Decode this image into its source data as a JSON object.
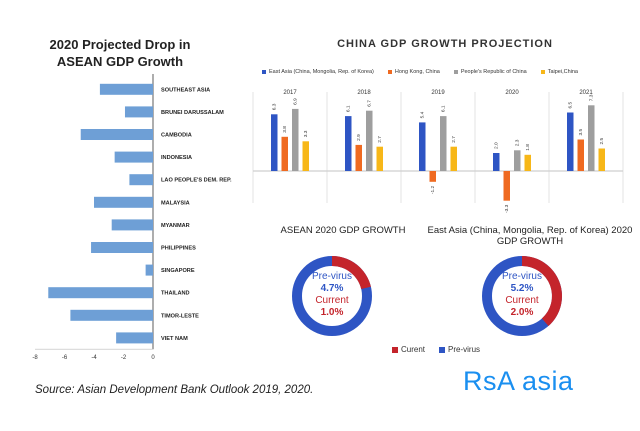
{
  "chart_data": [
    {
      "type": "bar",
      "orientation": "horizontal",
      "title": "2020 Projected Drop in ASEAN GDP Growth",
      "categories": [
        "SOUTHEAST ASIA",
        "BRUNEI DARUSSALAM",
        "CAMBODIA",
        "INDONESIA",
        "LAO PEOPLE'S DEM. REP.",
        "MALAYSIA",
        "MYANMAR",
        "PHILIPPINES",
        "SINGAPORE",
        "THAILAND",
        "TIMOR-LESTE",
        "VIET NAM"
      ],
      "values": [
        -3.6,
        -1.9,
        -4.9,
        -2.6,
        -1.6,
        -4.0,
        -2.8,
        -4.2,
        -0.5,
        -7.1,
        -5.6,
        -2.5
      ],
      "xlim": [
        -8,
        0
      ],
      "xticks": [
        "-8",
        "-6",
        "-4",
        "-2",
        "0"
      ]
    },
    {
      "type": "bar",
      "title": "CHINA GDP GROWTH PROJECTION",
      "categories": [
        "2017",
        "2018",
        "2019",
        "2020",
        "2021"
      ],
      "series": [
        {
          "name": "East Asia (China, Mongolia, Rep. of Korea)",
          "color": "#2e55c4",
          "values": [
            6.3,
            6.1,
            5.4,
            2.0,
            6.5
          ],
          "labels": [
            "6.3",
            "6.1",
            "5.4",
            "2.0",
            "6.5"
          ]
        },
        {
          "name": "Hong Kong, China",
          "color": "#ef6a21",
          "values": [
            3.8,
            2.9,
            -1.2,
            -3.3,
            3.5
          ],
          "labels": [
            "3.8",
            "2.9",
            "-1.2",
            "-3.3",
            "3.5"
          ]
        },
        {
          "name": "People's Republic of China",
          "color": "#9e9e9e",
          "values": [
            6.9,
            6.7,
            6.1,
            2.3,
            7.3
          ],
          "labels": [
            "6.9",
            "6.7",
            "6.1",
            "2.3",
            "7.3"
          ]
        },
        {
          "name": "Taipei,China",
          "color": "#f7b718",
          "values": [
            3.3,
            2.7,
            2.7,
            1.8,
            2.5
          ],
          "labels": [
            "3.3",
            "2.7",
            "2.7",
            "1.8",
            "2.5"
          ]
        }
      ]
    },
    {
      "type": "pie",
      "title": "ASEAN 2020 GDP GROWTH",
      "labels": [
        "Curent",
        "Pre-virus"
      ],
      "values": [
        1.0,
        4.7
      ],
      "center_text": {
        "pre_label": "Pre-virus",
        "pre_value": "4.7%",
        "cur_label": "Current",
        "cur_value": "1.0%"
      }
    },
    {
      "type": "pie",
      "title": "East Asia (China, Mongolia, Rep. of Korea) 2020 GDP GROWTH",
      "labels": [
        "Curent",
        "Pre-virus"
      ],
      "values": [
        2.0,
        5.2
      ],
      "center_text": {
        "pre_label": "Pre-virus",
        "pre_value": "5.2%",
        "cur_label": "Current",
        "cur_value": "2.0%"
      }
    }
  ],
  "colors": {
    "hbar": "#6e9fd6",
    "current": "#c4242b",
    "previrus": "#2e55c4",
    "brand": "#1a8ff0"
  },
  "legend": {
    "current": "Curent",
    "previrus": "Pre-virus"
  },
  "source": "Source: Asian Development Bank Outlook 2019, 2020.",
  "brand": "RsA asia"
}
